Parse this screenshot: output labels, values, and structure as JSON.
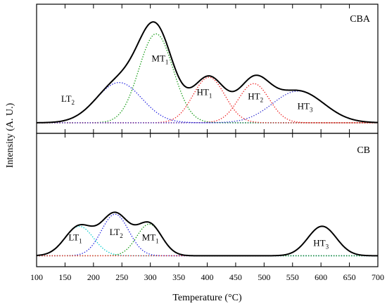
{
  "chart_data": {
    "type": "line",
    "xlabel": "Temperature (°C)",
    "ylabel": "Intensity (A. U.)",
    "xlim": [
      100,
      700
    ],
    "x_ticks": [
      100,
      150,
      200,
      250,
      300,
      350,
      400,
      450,
      500,
      550,
      600,
      650,
      700
    ],
    "y_ticks_shown": false,
    "grid": false,
    "panels": [
      {
        "label": "CBA",
        "baseline": 0,
        "ylim": [
          -0.1,
          1.12
        ],
        "total_color": "#000000",
        "components": [
          {
            "name": "LT",
            "sub": "2",
            "center": 245,
            "height": 0.38,
            "sigma": 40,
            "color": "#2020e0",
            "label_x": 155,
            "label_y": 0.2
          },
          {
            "name": "MT",
            "sub": "1",
            "center": 310,
            "height": 0.84,
            "sigma": 30,
            "color": "#119911",
            "label_x": 317,
            "label_y": 0.58
          },
          {
            "name": "HT",
            "sub": "1",
            "center": 403,
            "height": 0.43,
            "sigma": 28,
            "color": "#ee2020",
            "label_x": 395,
            "label_y": 0.26
          },
          {
            "name": "HT",
            "sub": "2",
            "center": 482,
            "height": 0.37,
            "sigma": 27,
            "color": "#ee2020",
            "label_x": 485,
            "label_y": 0.22
          },
          {
            "name": "HT",
            "sub": "3",
            "center": 560,
            "height": 0.3,
            "sigma": 45,
            "color": "#3030d0",
            "label_x": 572,
            "label_y": 0.13
          }
        ]
      },
      {
        "label": "CB",
        "baseline": 0,
        "ylim": [
          -0.1,
          1.12
        ],
        "total_color": "#000000",
        "components": [
          {
            "name": "LT",
            "sub": "1",
            "center": 175,
            "height": 0.27,
            "sigma": 25,
            "color": "#00cccc",
            "label_x": 168,
            "label_y": 0.14
          },
          {
            "name": "LT",
            "sub": "2",
            "center": 238,
            "height": 0.38,
            "sigma": 24,
            "color": "#2020e0",
            "label_x": 240,
            "label_y": 0.19
          },
          {
            "name": "MT",
            "sub": "1",
            "center": 298,
            "height": 0.29,
            "sigma": 22,
            "color": "#119911",
            "label_x": 300,
            "label_y": 0.14
          },
          {
            "name": "HT",
            "sub": "3",
            "center": 602,
            "height": 0.27,
            "sigma": 25,
            "color": "#ee2020",
            "label_x": 600,
            "label_y": 0.09
          }
        ]
      }
    ]
  }
}
